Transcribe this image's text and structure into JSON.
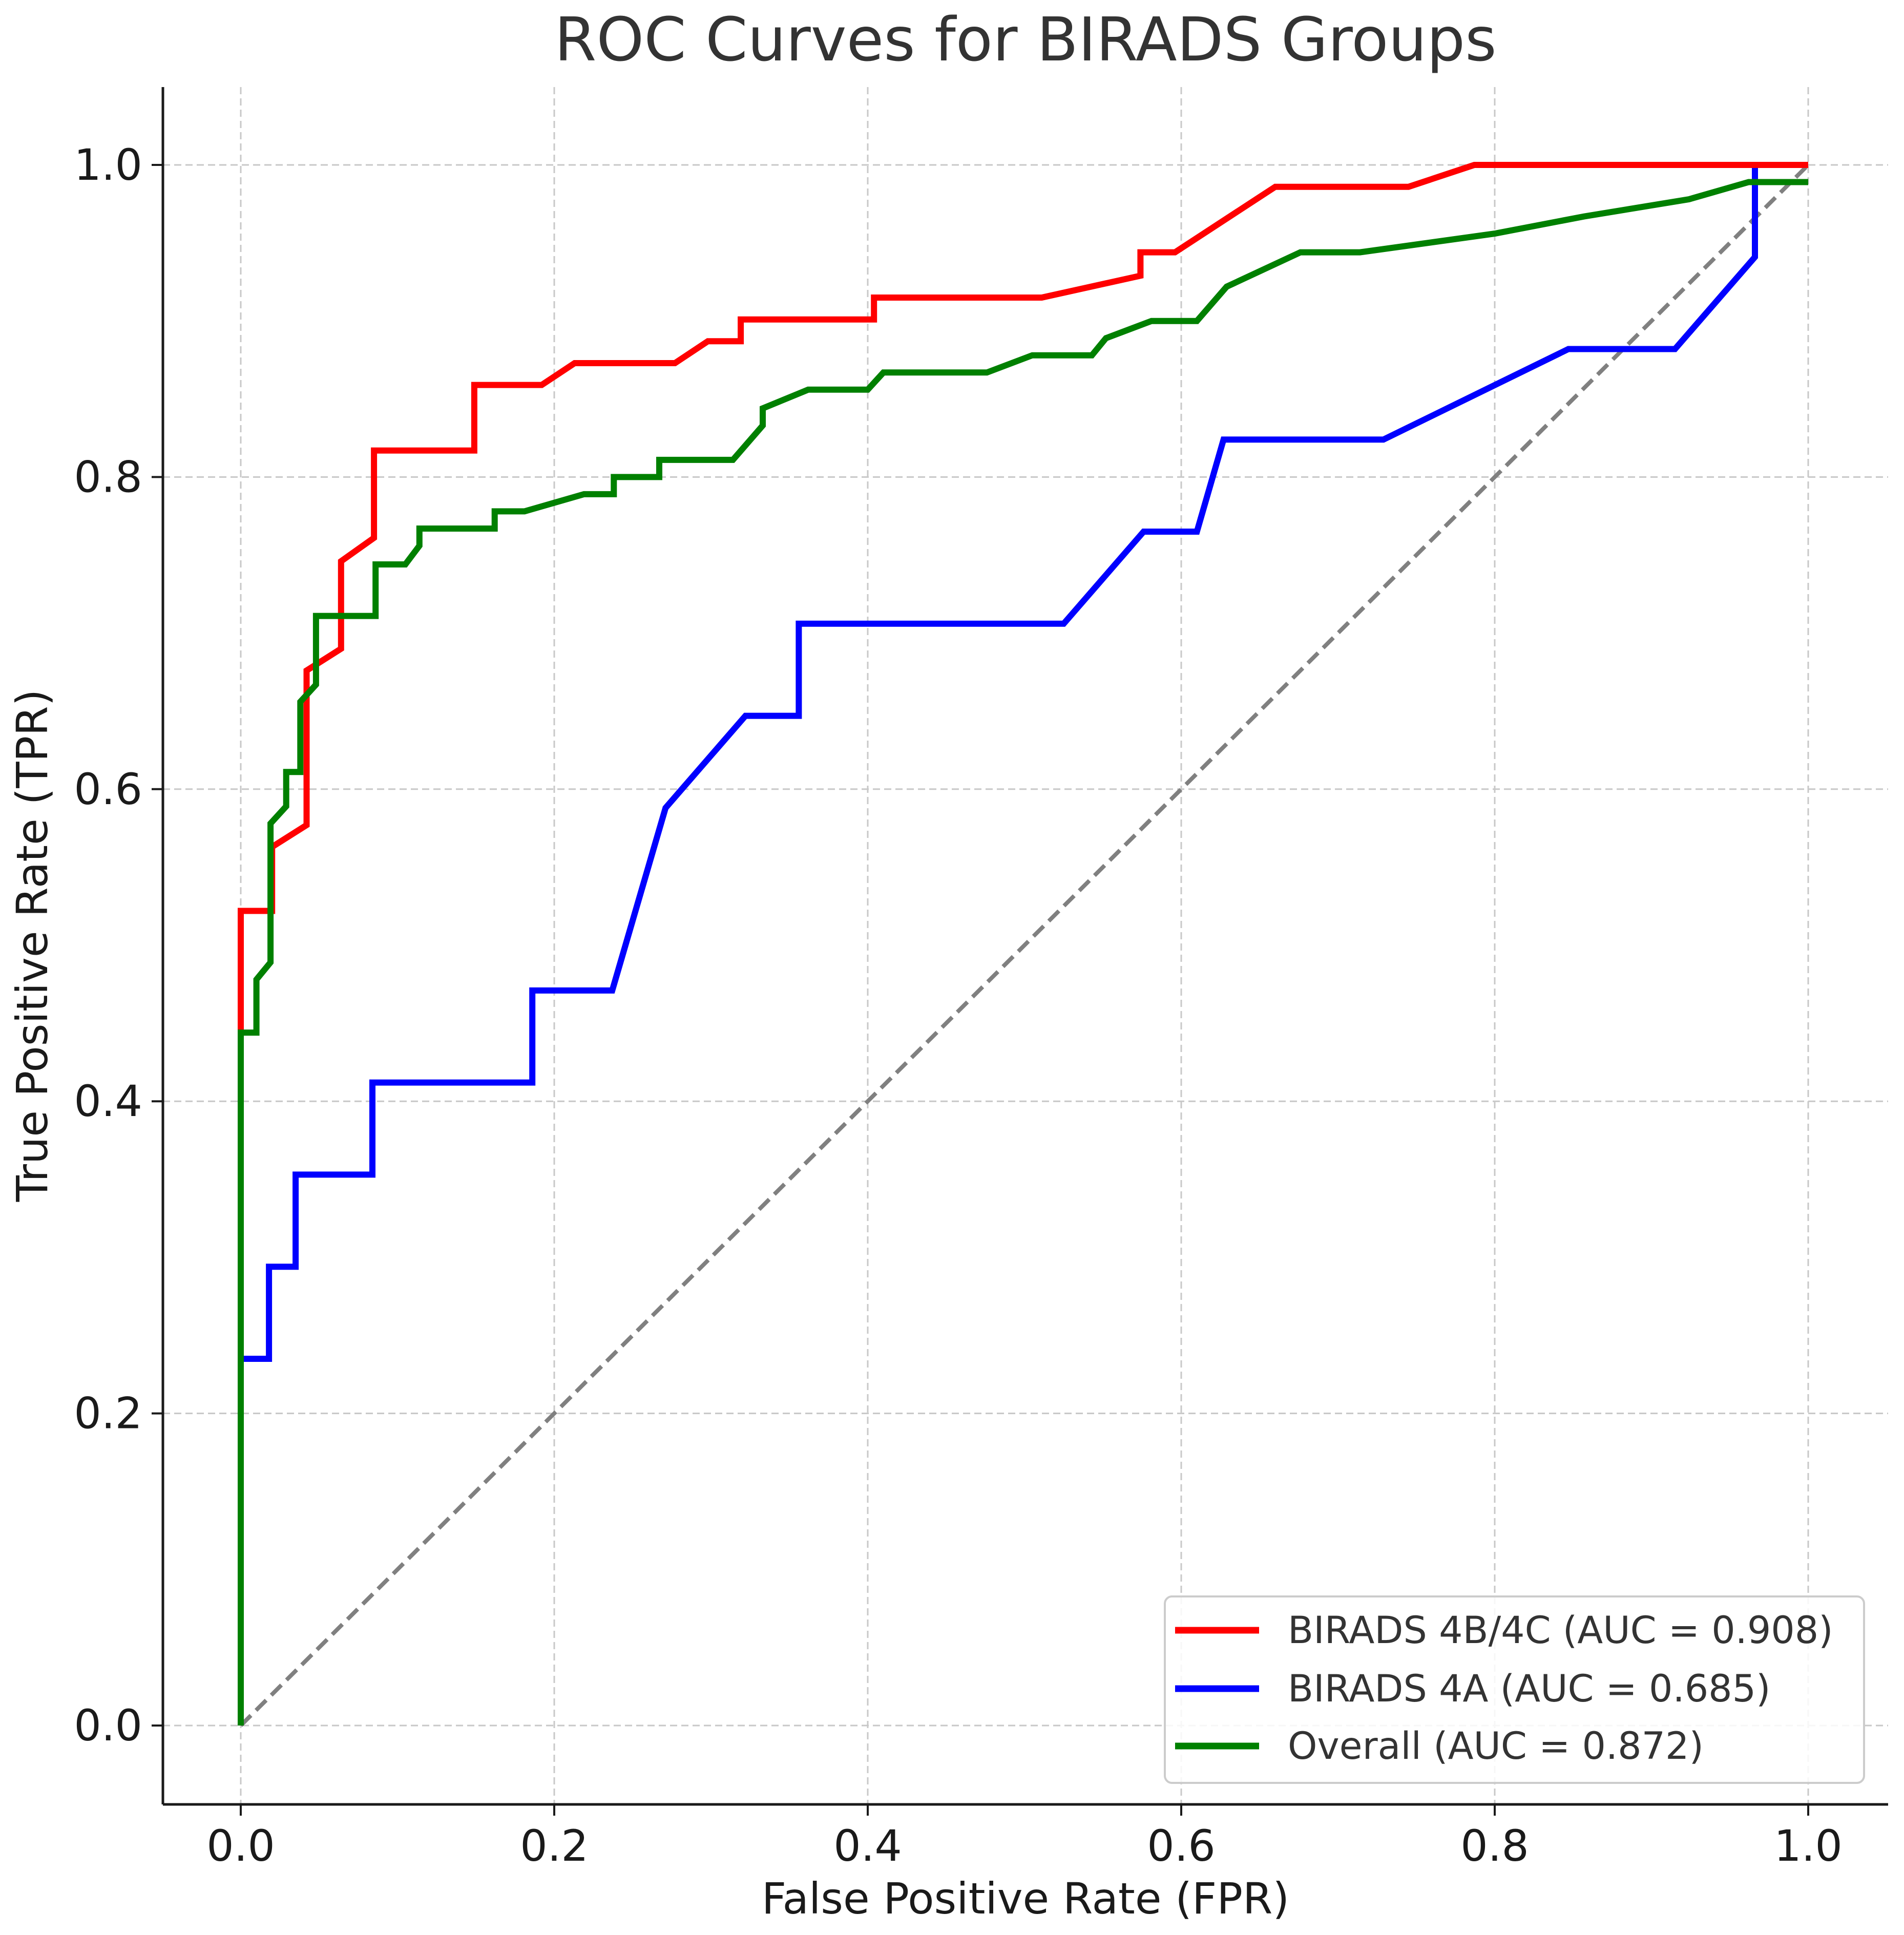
{
  "chart_data": {
    "type": "line",
    "title": "ROC Curves for BIRADS Groups",
    "xlabel": "False Positive Rate (FPR)",
    "ylabel": "True Positive Rate (TPR)",
    "xlim": [
      -0.05,
      1.05
    ],
    "ylim": [
      -0.05,
      1.05
    ],
    "xticks": [
      0.0,
      0.2,
      0.4,
      0.6,
      0.8,
      1.0
    ],
    "yticks": [
      0.0,
      0.2,
      0.4,
      0.6,
      0.8,
      1.0
    ],
    "xtick_labels": [
      "0.0",
      "0.2",
      "0.4",
      "0.6",
      "0.8",
      "1.0"
    ],
    "ytick_labels": [
      "0.0",
      "0.2",
      "0.4",
      "0.6",
      "0.8",
      "1.0"
    ],
    "grid": true,
    "legend_position": "lower right",
    "series": [
      {
        "name": "BIRADS 4B/4C (AUC = 0.908)",
        "color": "#ff0000",
        "x": [
          0.0,
          0.0,
          0.0,
          0.02,
          0.02,
          0.042,
          0.042,
          0.064,
          0.064,
          0.085,
          0.085,
          0.149,
          0.149,
          0.192,
          0.213,
          0.277,
          0.298,
          0.319,
          0.319,
          0.404,
          0.404,
          0.511,
          0.574,
          0.574,
          0.596,
          0.66,
          0.745,
          0.787,
          0.957,
          1.0
        ],
        "y": [
          0.0,
          0.447,
          0.522,
          0.522,
          0.563,
          0.577,
          0.676,
          0.69,
          0.746,
          0.761,
          0.817,
          0.817,
          0.859,
          0.859,
          0.873,
          0.873,
          0.887,
          0.887,
          0.901,
          0.901,
          0.915,
          0.915,
          0.929,
          0.944,
          0.944,
          0.986,
          0.986,
          1.0,
          1.0,
          1.0
        ]
      },
      {
        "name": "BIRADS 4A (AUC = 0.685)",
        "color": "#0000ff",
        "x": [
          0.0,
          0.0,
          0.018,
          0.018,
          0.035,
          0.035,
          0.084,
          0.084,
          0.186,
          0.186,
          0.237,
          0.271,
          0.322,
          0.356,
          0.356,
          0.525,
          0.576,
          0.61,
          0.627,
          0.729,
          0.847,
          0.915,
          0.966,
          0.966,
          1.0
        ],
        "y": [
          0.0,
          0.235,
          0.235,
          0.294,
          0.294,
          0.353,
          0.353,
          0.412,
          0.412,
          0.471,
          0.471,
          0.588,
          0.647,
          0.647,
          0.706,
          0.706,
          0.765,
          0.765,
          0.824,
          0.824,
          0.882,
          0.882,
          0.941,
          1.0,
          1.0
        ]
      },
      {
        "name": "Overall (AUC = 0.872)",
        "color": "#008000",
        "x": [
          0.0,
          0.0,
          0.01,
          0.01,
          0.019,
          0.019,
          0.029,
          0.029,
          0.038,
          0.038,
          0.048,
          0.048,
          0.086,
          0.086,
          0.105,
          0.114,
          0.114,
          0.162,
          0.162,
          0.181,
          0.219,
          0.238,
          0.238,
          0.267,
          0.267,
          0.314,
          0.333,
          0.333,
          0.362,
          0.4,
          0.41,
          0.476,
          0.505,
          0.543,
          0.552,
          0.581,
          0.61,
          0.629,
          0.676,
          0.714,
          0.8,
          0.857,
          0.924,
          0.962,
          1.0
        ],
        "y": [
          0.0,
          0.444,
          0.444,
          0.478,
          0.489,
          0.578,
          0.589,
          0.611,
          0.611,
          0.656,
          0.667,
          0.711,
          0.711,
          0.744,
          0.744,
          0.756,
          0.767,
          0.767,
          0.778,
          0.778,
          0.789,
          0.789,
          0.8,
          0.8,
          0.811,
          0.811,
          0.833,
          0.844,
          0.856,
          0.856,
          0.867,
          0.867,
          0.878,
          0.878,
          0.889,
          0.9,
          0.9,
          0.922,
          0.944,
          0.944,
          0.956,
          0.967,
          0.978,
          0.989,
          0.989
        ]
      }
    ],
    "reference_line": {
      "x": [
        0.0,
        1.0
      ],
      "y": [
        0.0,
        1.0
      ],
      "color": "#808080",
      "style": "dashed"
    }
  }
}
